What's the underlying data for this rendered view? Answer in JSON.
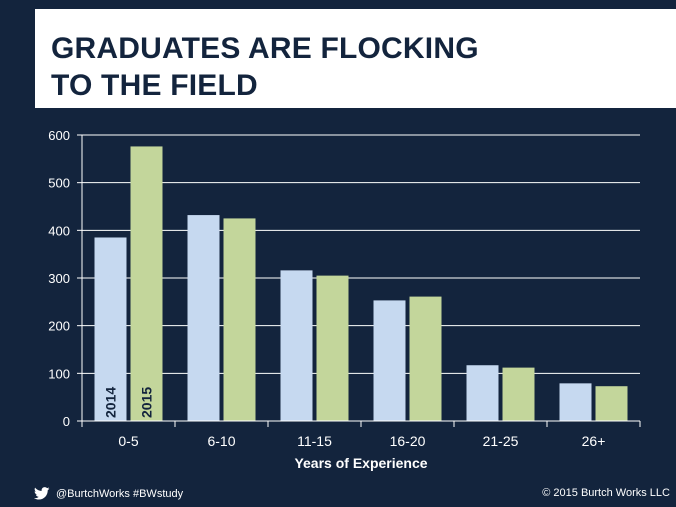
{
  "title": {
    "line1": "GRADUATES ARE FLOCKING",
    "line2": "TO THE FIELD"
  },
  "footer": {
    "handle": "@BurtchWorks #BWstudy",
    "copyright": "© 2015 Burtch Works LLC",
    "icon": "twitter-bird-icon"
  },
  "colors": {
    "background": "#13243d",
    "series_2014": "#c6d9f0",
    "series_2015": "#c3d69b"
  },
  "chart_data": {
    "type": "bar",
    "title": "GRADUATES ARE FLOCKING TO THE FIELD",
    "xlabel": "Years of Experience",
    "ylabel": "",
    "categories": [
      "0-5",
      "6-10",
      "11-15",
      "16-20",
      "21-25",
      "26+"
    ],
    "series": [
      {
        "name": "2014",
        "values": [
          385,
          432,
          316,
          253,
          117,
          79
        ]
      },
      {
        "name": "2015",
        "values": [
          576,
          425,
          305,
          261,
          112,
          73
        ]
      }
    ],
    "ylim": [
      0,
      600
    ],
    "yticks": [
      0,
      100,
      200,
      300,
      400,
      500,
      600
    ],
    "grid": true,
    "legend": "series names printed vertically inside first category bars"
  }
}
